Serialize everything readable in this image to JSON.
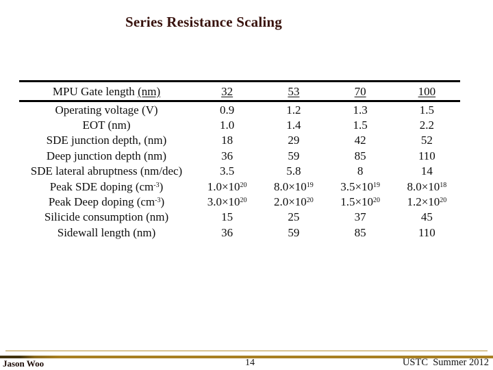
{
  "slide": {
    "title": "Series Resistance Scaling"
  },
  "table": {
    "header": {
      "label": "MPU Gate length ",
      "label_underlined_part": "(nm)",
      "values": [
        "32",
        "53",
        "70",
        "100"
      ],
      "values_underlined": true
    },
    "rows": [
      {
        "label": "Operating voltage (V)",
        "values": [
          "0.9",
          "1.2",
          "1.3",
          "1.5"
        ]
      },
      {
        "label": "EOT (nm)",
        "values": [
          "1.0",
          "1.4",
          "1.5",
          "2.2"
        ]
      },
      {
        "label": "SDE junction depth, (nm)",
        "values": [
          "18",
          "29",
          "42",
          "52"
        ]
      },
      {
        "label": "Deep junction depth (nm)",
        "values": [
          "36",
          "59",
          "85",
          "110"
        ]
      },
      {
        "label": "SDE lateral abruptness (nm/dec)",
        "values": [
          "3.5",
          "5.8",
          "8",
          "14"
        ]
      },
      {
        "label": "Peak SDE doping (cm^-3)",
        "values": [
          "1.0×10^20",
          "8.0×10^19",
          "3.5×10^19",
          "8.0×10^18"
        ]
      },
      {
        "label": "Peak Deep doping (cm^-3)",
        "values": [
          "3.0×10^20",
          "2.0×10^20",
          "1.5×10^20",
          "1.2×10^20"
        ]
      },
      {
        "label": "Silicide consumption (nm)",
        "values": [
          "15",
          "25",
          "37",
          "45"
        ]
      },
      {
        "label": "Sidewall length (nm)",
        "values": [
          "36",
          "59",
          "85",
          "110"
        ]
      }
    ]
  },
  "footer": {
    "author": "Jason Woo",
    "page_number": "14",
    "right_text": "USTC  Summer 2012"
  },
  "colors": {
    "title": "#38120d",
    "table_text": "#0d0d0d",
    "gold_line": "#a87f22",
    "tan_line": "#d8c493",
    "background": "#ffffff"
  }
}
